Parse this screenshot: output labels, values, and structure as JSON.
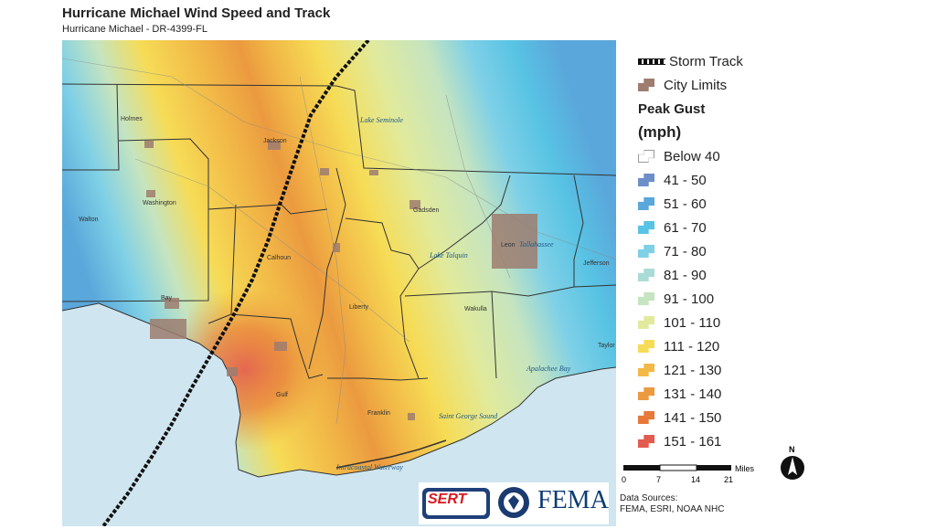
{
  "header": {
    "title": "Hurricane Michael Wind Speed and Track",
    "subtitle": "Hurricane Michael - DR-4399-FL"
  },
  "colors": {
    "below_40": "#ffffff",
    "41_50": "#6d8fc9",
    "51_60": "#5aa7db",
    "61_70": "#58c3e4",
    "71_80": "#7ed0e6",
    "81_90": "#a9dcd6",
    "91_100": "#c5e4c0",
    "101_110": "#e1ea9c",
    "111_120": "#f6dc56",
    "121_130": "#f2b947",
    "131_140": "#eb9a3f",
    "141_150": "#e7793a",
    "151_161": "#e35a4f",
    "water": "#cfe5ef",
    "city": "#9e7d6f",
    "track": "#111111"
  },
  "legend": {
    "storm_track": "Storm Track",
    "city_limits": "City Limits",
    "peak_gust_label": "Peak Gust",
    "peak_gust_unit": "(mph)",
    "items": [
      {
        "label": "Below 40",
        "color": "#ffffff",
        "icon": "outline-swatch"
      },
      {
        "label": "41 - 50",
        "color": "#6d8fc9"
      },
      {
        "label": "51 - 60",
        "color": "#5aa7db"
      },
      {
        "label": "61 - 70",
        "color": "#58c3e4"
      },
      {
        "label": "71 - 80",
        "color": "#7ed0e6"
      },
      {
        "label": "81 - 90",
        "color": "#a9dcd6"
      },
      {
        "label": "91 - 100",
        "color": "#c5e4c0"
      },
      {
        "label": "101 - 110",
        "color": "#e1ea9c"
      },
      {
        "label": "111 - 120",
        "color": "#f6dc56"
      },
      {
        "label": "121 - 130",
        "color": "#f2b947"
      },
      {
        "label": "131 - 140",
        "color": "#eb9a3f"
      },
      {
        "label": "141 - 150",
        "color": "#e7793a"
      },
      {
        "label": "151 - 161",
        "color": "#e35a4f"
      }
    ]
  },
  "scale": {
    "unit": "Miles",
    "ticks": [
      "0",
      "7",
      "14",
      "21"
    ]
  },
  "north_arrow": {
    "label": "N",
    "icon": "north-arrow-icon"
  },
  "sources": {
    "line1": "Data Sources:",
    "line2": "FEMA, ESRI, NOAA NHC"
  },
  "logos": {
    "sert": "SERT",
    "fema": "FEMA",
    "seal_icon": "dhs-seal-icon"
  },
  "map": {
    "counties": [
      "Holmes",
      "Jackson",
      "Washington",
      "Walton",
      "Calhoun",
      "Bay",
      "Gadsden",
      "Liberty",
      "Leon",
      "Jefferson",
      "Wakulla",
      "Gulf",
      "Franklin",
      "Taylor"
    ],
    "water": [
      "Lake Seminole",
      "Lake Talquin",
      "Apalachee Bay",
      "Saint George Sound",
      "Intracoastal Waterway"
    ],
    "cities": [
      "Tallahassee"
    ]
  }
}
